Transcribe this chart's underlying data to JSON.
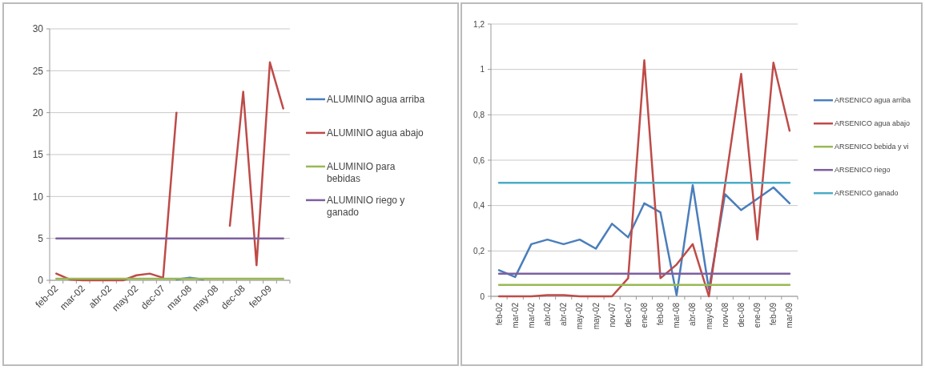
{
  "chart_data": [
    {
      "type": "line",
      "categories": [
        "feb-02",
        null,
        "mar-02",
        null,
        "abr-02",
        null,
        "may-02",
        null,
        "dec-07",
        null,
        "mar-08",
        null,
        "may-08",
        null,
        "dec-08",
        null,
        "feb-09",
        null
      ],
      "ylim": [
        0,
        30
      ],
      "yticks": [
        0,
        5,
        10,
        15,
        20,
        25,
        30
      ],
      "grid": "y",
      "legend": "right",
      "marker": "none",
      "line_style": "solid",
      "series": [
        {
          "name": "ALUMINIO agua arriba",
          "color": "#4a7ebb",
          "values": [
            null,
            null,
            null,
            null,
            null,
            null,
            null,
            null,
            null,
            0.1,
            0.3,
            0.1,
            null,
            null,
            null,
            null,
            null,
            null
          ]
        },
        {
          "name": "ALUMINIO agua abajo",
          "color": "#be4b48",
          "values": [
            0.8,
            0.1,
            0,
            0,
            0,
            0,
            0.6,
            0.8,
            0.3,
            20,
            null,
            null,
            null,
            6.5,
            22.5,
            1.8,
            26,
            20.5
          ]
        },
        {
          "name": "ALUMINIO para bebidas",
          "color": "#98b954",
          "values": [
            0.2,
            0.2,
            0.2,
            0.2,
            0.2,
            0.2,
            0.2,
            0.2,
            0.2,
            0.2,
            0.2,
            0.2,
            0.2,
            0.2,
            0.2,
            0.2,
            0.2,
            0.2
          ]
        },
        {
          "name": "ALUMINIO riego y ganado",
          "color": "#7d60a0",
          "values": [
            5,
            5,
            5,
            5,
            5,
            5,
            5,
            5,
            5,
            5,
            5,
            5,
            5,
            5,
            5,
            5,
            5,
            5
          ]
        }
      ]
    },
    {
      "type": "line",
      "categories": [
        "feb-02",
        "mar-02",
        "mar-02",
        "abr-02",
        "abr-02",
        "may-02",
        "may-02",
        "nov-07",
        "dec-07",
        "ene-08",
        "feb-08",
        "mar-08",
        "abr-08",
        "may-08",
        "nov-08",
        "dec-08",
        "ene-09",
        "feb-09",
        "mar-09"
      ],
      "ylim": [
        0,
        1.2
      ],
      "yticks": [
        {
          "value": 0,
          "label": "0"
        },
        {
          "value": 0.2,
          "label": "0,2"
        },
        {
          "value": 0.4,
          "label": "0,4"
        },
        {
          "value": 0.6,
          "label": "0,6"
        },
        {
          "value": 0.8,
          "label": "0,8"
        },
        {
          "value": 1,
          "label": "1"
        },
        {
          "value": 1.2,
          "label": "1,2"
        }
      ],
      "grid": "y",
      "legend": "right",
      "marker": "none",
      "line_style": "solid",
      "series": [
        {
          "name": "ARSENICO agua arriba",
          "color": "#4a7ebb",
          "values": [
            0.115,
            0.085,
            0.23,
            0.25,
            0.23,
            0.25,
            0.21,
            0.32,
            0.26,
            0.41,
            0.37,
            0.005,
            0.49,
            0.03,
            0.45,
            0.38,
            0.43,
            0.48,
            0.41
          ]
        },
        {
          "name": "ARSENICO agua abajo",
          "color": "#be4b48",
          "values": [
            0,
            0,
            0,
            0.005,
            0.005,
            0,
            0,
            0,
            0.08,
            1.04,
            0.08,
            0.14,
            0.23,
            0,
            0.49,
            0.98,
            0.25,
            1.03,
            0.73
          ]
        },
        {
          "name": "ARSENICO bebida y vi",
          "color": "#98b954",
          "values": [
            0.05,
            0.05,
            0.05,
            0.05,
            0.05,
            0.05,
            0.05,
            0.05,
            0.05,
            0.05,
            0.05,
            0.05,
            0.05,
            0.05,
            0.05,
            0.05,
            0.05,
            0.05,
            0.05
          ]
        },
        {
          "name": "ARSENICO riego",
          "color": "#7d60a0",
          "values": [
            0.1,
            0.1,
            0.1,
            0.1,
            0.1,
            0.1,
            0.1,
            0.1,
            0.1,
            0.1,
            0.1,
            0.1,
            0.1,
            0.1,
            0.1,
            0.1,
            0.1,
            0.1,
            0.1
          ]
        },
        {
          "name": "ARSENICO ganado",
          "color": "#4bacc6",
          "values": [
            0.5,
            0.5,
            0.5,
            0.5,
            0.5,
            0.5,
            0.5,
            0.5,
            0.5,
            0.5,
            0.5,
            0.5,
            0.5,
            0.5,
            0.5,
            0.5,
            0.5,
            0.5,
            0.5
          ]
        }
      ]
    }
  ]
}
